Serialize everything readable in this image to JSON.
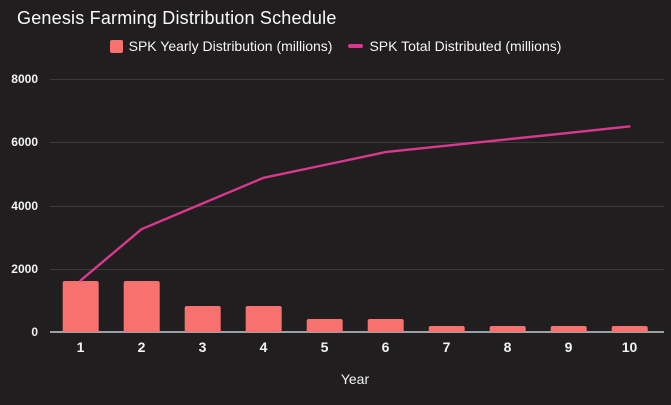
{
  "title": "Genesis Farming Distribution Schedule",
  "x_axis_title": "Year",
  "legend": {
    "items": [
      {
        "label": "SPK Yearly Distribution (millions)",
        "marker": "square-icon",
        "color": "#f7716e"
      },
      {
        "label": "SPK Total Distributed (millions)",
        "marker": "dash-icon",
        "color": "#d9388f"
      }
    ]
  },
  "colors": {
    "background": "#201e1e",
    "bar": "#f7716e",
    "line": "#d9388f",
    "gridline": "#3a3a3a",
    "axis_line": "#9ba0a6",
    "text": "#ffffff"
  },
  "chart_data": {
    "type": "combo",
    "categories": [
      "1",
      "2",
      "3",
      "4",
      "5",
      "6",
      "7",
      "8",
      "9",
      "10"
    ],
    "series": [
      {
        "name": "SPK Yearly Distribution (millions)",
        "type": "bar",
        "color": "#f7716e",
        "values": [
          1625,
          1625,
          812.5,
          812.5,
          406.25,
          406.25,
          203.125,
          203.125,
          203.125,
          203.125
        ]
      },
      {
        "name": "SPK Total Distributed (millions)",
        "type": "line",
        "color": "#d9388f",
        "values": [
          1625,
          3250,
          4062.5,
          4875,
          5281.25,
          5687.5,
          5890.625,
          6093.75,
          6296.875,
          6500
        ]
      }
    ],
    "title": "Genesis Farming Distribution Schedule",
    "xlabel": "Year",
    "ylabel": "",
    "ylim": [
      0,
      8000
    ],
    "yticks": [
      0,
      2000,
      4000,
      6000,
      8000
    ],
    "grid": true,
    "legend_position": "top"
  }
}
